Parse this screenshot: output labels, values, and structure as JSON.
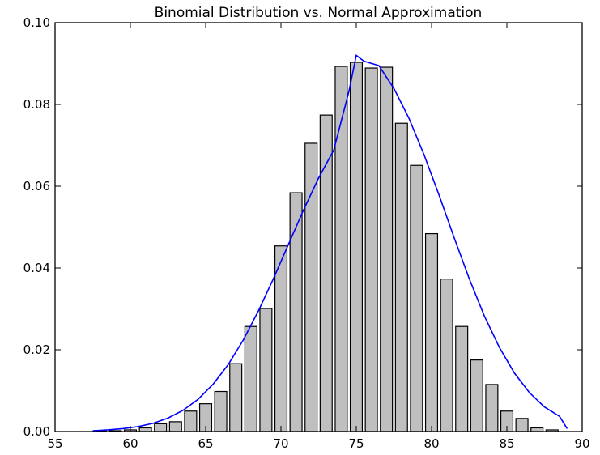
{
  "chart_data": {
    "type": "bar",
    "title": "Binomial Distribution vs. Normal Approximation",
    "xlabel": "",
    "ylabel": "",
    "xlim": [
      55,
      90
    ],
    "ylim": [
      0.0,
      0.1
    ],
    "x_ticks": [
      55,
      60,
      65,
      70,
      75,
      80,
      85,
      90
    ],
    "x_tick_labels": [
      "55",
      "60",
      "65",
      "70",
      "75",
      "80",
      "85",
      "90"
    ],
    "y_ticks": [
      0.0,
      0.02,
      0.04,
      0.06,
      0.08,
      0.1
    ],
    "y_tick_labels": [
      "0.00",
      "0.02",
      "0.04",
      "0.06",
      "0.08",
      "0.10"
    ],
    "grid": false,
    "legend": "none",
    "bar_series": {
      "color": "#bfbfbf",
      "edge_color": "#000000",
      "bar_width": 0.8,
      "x": [
        58,
        59,
        60,
        61,
        62,
        63,
        64,
        65,
        66,
        67,
        68,
        69,
        70,
        71,
        72,
        73,
        74,
        75,
        76,
        77,
        78,
        79,
        80,
        81,
        82,
        83,
        84,
        85,
        86,
        87,
        88
      ],
      "values": [
        0.0001,
        0.0002,
        0.0004,
        0.0009,
        0.0019,
        0.0024,
        0.005,
        0.0068,
        0.0098,
        0.0166,
        0.0257,
        0.0301,
        0.0454,
        0.0584,
        0.0705,
        0.0774,
        0.0893,
        0.0903,
        0.0889,
        0.0891,
        0.0754,
        0.0651,
        0.0484,
        0.0373,
        0.0257,
        0.0175,
        0.0115,
        0.005,
        0.0032,
        0.0009,
        0.0004
      ]
    },
    "line_series": {
      "color": "#0000ff",
      "x": [
        57.5,
        58.5,
        59.5,
        60.5,
        61.5,
        62.5,
        63.5,
        64.5,
        65.5,
        66.5,
        67.5,
        68.5,
        69.5,
        70.5,
        71.5,
        72.5,
        73.5,
        74.5,
        75,
        75.5,
        76.5,
        77.5,
        78.5,
        79.5,
        80.5,
        81.5,
        82.5,
        83.5,
        84.5,
        85.5,
        86.5,
        87.5,
        88.5,
        89.0
      ],
      "values": [
        0.0002,
        0.0004,
        0.0007,
        0.0012,
        0.002,
        0.0033,
        0.0052,
        0.0079,
        0.0116,
        0.0164,
        0.0224,
        0.0295,
        0.0374,
        0.0458,
        0.0542,
        0.062,
        0.0688,
        0.083,
        0.092,
        0.0906,
        0.0895,
        0.0839,
        0.0766,
        0.0677,
        0.0578,
        0.0474,
        0.0374,
        0.0283,
        0.0206,
        0.0143,
        0.0095,
        0.006,
        0.0037,
        0.0007
      ]
    }
  }
}
